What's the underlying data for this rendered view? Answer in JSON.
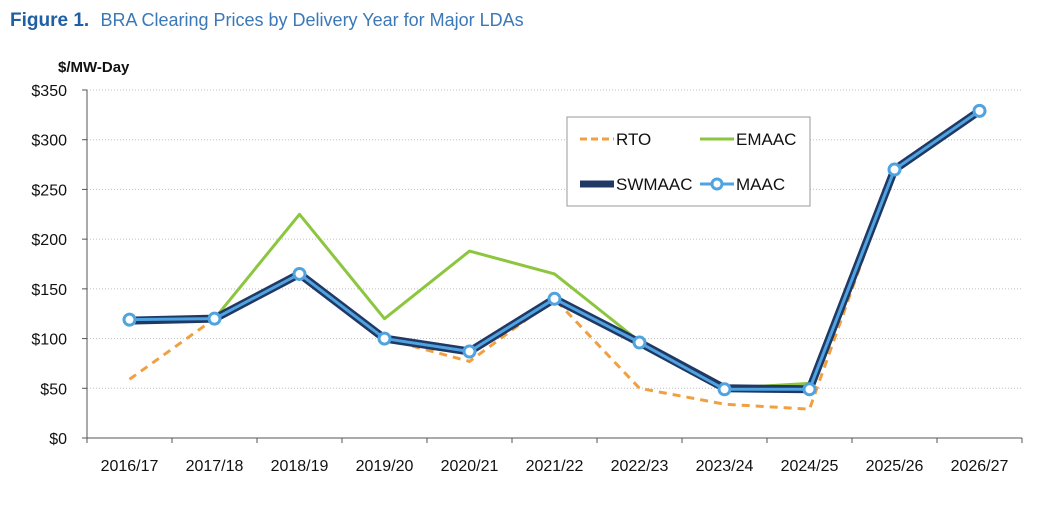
{
  "figure": {
    "number": "Figure 1.",
    "title": "BRA Clearing Prices by Delivery Year for Major LDAs"
  },
  "chart_data": {
    "type": "line",
    "title": "BRA Clearing Prices by Delivery Year for Major LDAs",
    "ylabel": "$/MW-Day",
    "xlabel": "",
    "ylim": [
      0,
      350
    ],
    "yticks": [
      0,
      50,
      100,
      150,
      200,
      250,
      300,
      350
    ],
    "ytick_labels": [
      "$0",
      "$50",
      "$100",
      "$150",
      "$200",
      "$250",
      "$300",
      "$350"
    ],
    "grid": "horizontal dotted",
    "legend_position": "top-right",
    "categories": [
      "2016/17",
      "2017/18",
      "2018/19",
      "2019/20",
      "2020/21",
      "2021/22",
      "2022/23",
      "2023/24",
      "2024/25",
      "2025/26",
      "2026/27"
    ],
    "series": [
      {
        "name": "RTO",
        "color": "#f0a040",
        "style": "dashed",
        "values": [
          59,
          120,
          165,
          100,
          77,
          140,
          50,
          34,
          29,
          270,
          329
        ]
      },
      {
        "name": "EMAAC",
        "color": "#8cc63f",
        "style": "solid",
        "values": [
          119,
          120,
          225,
          120,
          188,
          165,
          97,
          50,
          55,
          270,
          329
        ]
      },
      {
        "name": "SWMAAC",
        "color": "#1f3864",
        "style": "thick",
        "values": [
          118,
          120,
          165,
          100,
          87,
          140,
          96,
          50,
          49,
          270,
          329
        ]
      },
      {
        "name": "MAAC",
        "color": "#4fa3e0",
        "style": "marker",
        "values": [
          119,
          120,
          165,
          100,
          87,
          140,
          96,
          49,
          49,
          270,
          329
        ]
      }
    ]
  }
}
